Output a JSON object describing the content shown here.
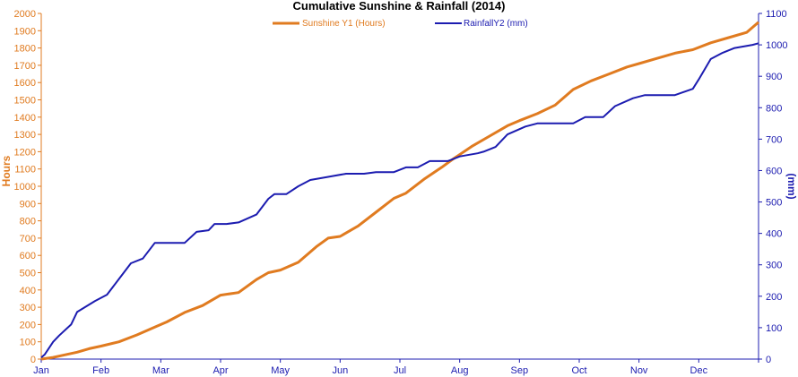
{
  "chart_data": {
    "type": "line",
    "title": "Cumulative Sunshine & Rainfall (2014)",
    "y1label": "Hours",
    "y2label": "(mm)",
    "x_ticks": [
      "Jan",
      "Feb",
      "Mar",
      "Apr",
      "May",
      "Jun",
      "Jul",
      "Aug",
      "Sep",
      "Oct",
      "Nov",
      "Dec"
    ],
    "y1lim": [
      0,
      2000
    ],
    "y1_ticks": [
      0,
      100,
      200,
      300,
      400,
      500,
      600,
      700,
      800,
      900,
      1000,
      1100,
      1200,
      1300,
      1400,
      1500,
      1600,
      1700,
      1800,
      1900,
      2000
    ],
    "y2lim": [
      0,
      1100
    ],
    "y2_ticks": [
      0,
      100,
      200,
      300,
      400,
      500,
      600,
      700,
      800,
      900,
      1000,
      1100
    ],
    "grid": false,
    "legend_position": "top",
    "colors": {
      "sunshine": "#e07b20",
      "rainfall": "#1c1cb0"
    },
    "series": [
      {
        "name": "Sunshine Y1 (Hours)",
        "axis": "left",
        "x": [
          0,
          0.2,
          0.4,
          0.6,
          0.8,
          1.0,
          1.3,
          1.6,
          1.9,
          2.1,
          2.4,
          2.7,
          3.0,
          3.3,
          3.6,
          3.8,
          4.0,
          4.3,
          4.6,
          4.8,
          5.0,
          5.3,
          5.6,
          5.9,
          6.1,
          6.4,
          6.7,
          6.9,
          7.2,
          7.5,
          7.8,
          8.0,
          8.3,
          8.6,
          8.9,
          9.2,
          9.5,
          9.8,
          10.0,
          10.3,
          10.6,
          10.9,
          11.2,
          11.5,
          11.8,
          12.0
        ],
        "values": [
          0,
          10,
          25,
          40,
          60,
          75,
          100,
          140,
          185,
          215,
          270,
          310,
          370,
          385,
          460,
          500,
          515,
          560,
          650,
          700,
          710,
          770,
          850,
          930,
          960,
          1040,
          1110,
          1160,
          1230,
          1290,
          1350,
          1380,
          1420,
          1470,
          1560,
          1610,
          1650,
          1690,
          1710,
          1740,
          1770,
          1790,
          1830,
          1860,
          1890,
          1950
        ]
      },
      {
        "name": "RainfallY2 (mm)",
        "axis": "right",
        "x": [
          0,
          0.06,
          0.2,
          0.3,
          0.5,
          0.6,
          0.9,
          1.1,
          1.3,
          1.5,
          1.7,
          1.9,
          2.0,
          2.2,
          2.4,
          2.6,
          2.8,
          2.9,
          3.1,
          3.3,
          3.6,
          3.8,
          3.9,
          4.1,
          4.3,
          4.5,
          4.8,
          5.1,
          5.4,
          5.6,
          5.9,
          6.1,
          6.3,
          6.5,
          6.8,
          7.0,
          7.3,
          7.4,
          7.6,
          7.8,
          8.1,
          8.3,
          8.6,
          8.9,
          9.1,
          9.4,
          9.6,
          9.9,
          10.1,
          10.4,
          10.6,
          10.9,
          11.0,
          11.2,
          11.4,
          11.6,
          11.9,
          12.0
        ],
        "values": [
          5,
          15,
          55,
          75,
          110,
          150,
          185,
          205,
          255,
          305,
          320,
          370,
          370,
          370,
          370,
          405,
          410,
          430,
          430,
          435,
          460,
          510,
          525,
          525,
          550,
          570,
          580,
          590,
          590,
          595,
          595,
          610,
          610,
          630,
          630,
          645,
          655,
          660,
          675,
          715,
          740,
          750,
          750,
          750,
          770,
          770,
          805,
          830,
          840,
          840,
          840,
          860,
          890,
          955,
          975,
          990,
          1000,
          1005
        ]
      }
    ]
  }
}
